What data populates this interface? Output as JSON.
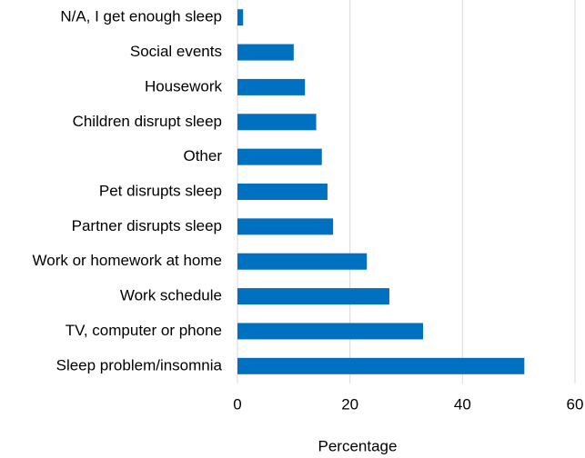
{
  "chart_data": {
    "type": "barh",
    "x_label": "Percentage",
    "categories": [
      "N/A, I get enough sleep",
      "Social events",
      "Housework",
      "Children disrupt sleep",
      "Other",
      "Pet disrupts sleep",
      "Partner disrupts sleep",
      "Work or homework at home",
      "Work schedule",
      "TV, computer or phone",
      "Sleep problem/insomnia"
    ],
    "values": [
      1,
      10,
      12,
      14,
      15,
      16,
      17,
      23,
      27,
      33,
      51
    ],
    "color": "#0070c0",
    "xlim": [
      0,
      60
    ],
    "xticks": [
      0,
      20,
      40,
      60
    ],
    "grid": true
  }
}
